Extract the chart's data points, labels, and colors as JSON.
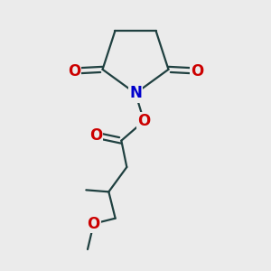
{
  "bg_color": "#ebebeb",
  "line_color": "#1f4040",
  "N_color": "#0000cc",
  "O_color": "#cc0000",
  "bond_width": 1.6,
  "font_size_atom": 12,
  "fig_size": [
    3.0,
    3.0
  ],
  "dpi": 100,
  "xlim": [
    0.1,
    0.9
  ],
  "ylim": [
    0.05,
    0.95
  ]
}
